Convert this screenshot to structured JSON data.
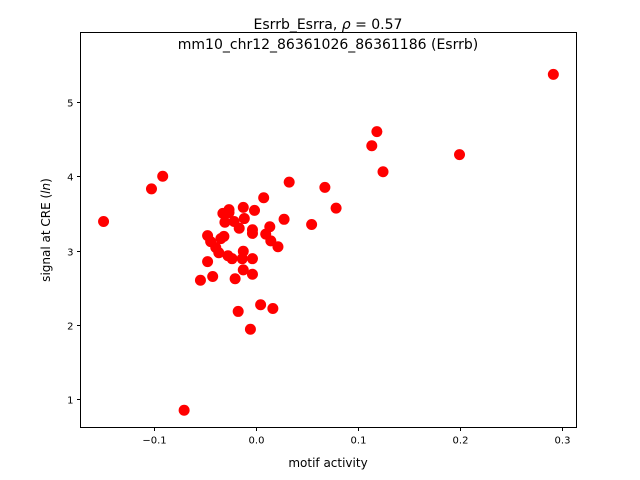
{
  "chart_data": {
    "type": "scatter",
    "title_line1_prefix": "Esrrb_Esrra, ",
    "title_rho_symbol": "ρ",
    "title_rho_value": " = 0.57",
    "title_line2": "mm10_chr12_86361026_86361186 (Esrrb)",
    "xlabel": "motif activity",
    "ylabel_prefix": "signal at CRE (",
    "ylabel_italic": "ln",
    "ylabel_suffix": ")",
    "xlim": [
      -0.1716,
      0.3147
    ],
    "ylim": [
      0.618,
      5.934
    ],
    "xticks": [
      -0.1,
      0.0,
      0.1,
      0.2,
      0.3
    ],
    "xtick_labels": [
      "−0.1",
      "0.0",
      "0.1",
      "0.2",
      "0.3"
    ],
    "yticks": [
      1,
      2,
      3,
      4,
      5
    ],
    "ytick_labels": [
      "1",
      "2",
      "3",
      "4",
      "5"
    ],
    "marker_color": "#ff0000",
    "grid": false,
    "points": [
      [
        0.033,
        3.92
      ],
      [
        0.068,
        3.85
      ],
      [
        0.079,
        3.57
      ],
      [
        0.008,
        3.71
      ],
      [
        -0.012,
        3.58
      ],
      [
        -0.001,
        3.54
      ],
      [
        -0.026,
        3.55
      ],
      [
        -0.032,
        3.5
      ],
      [
        -0.026,
        3.51
      ],
      [
        -0.011,
        3.43
      ],
      [
        -0.021,
        3.39
      ],
      [
        -0.03,
        3.38
      ],
      [
        0.028,
        3.42
      ],
      [
        0.055,
        3.35
      ],
      [
        0.014,
        3.32
      ],
      [
        -0.016,
        3.3
      ],
      [
        -0.003,
        3.28
      ],
      [
        -0.003,
        3.23
      ],
      [
        0.01,
        3.22
      ],
      [
        -0.047,
        3.2
      ],
      [
        -0.031,
        3.19
      ],
      [
        -0.034,
        3.16
      ],
      [
        -0.044,
        3.12
      ],
      [
        0.015,
        3.13
      ],
      [
        0.022,
        3.05
      ],
      [
        -0.039,
        3.04
      ],
      [
        -0.036,
        2.97
      ],
      [
        -0.012,
        2.99
      ],
      [
        -0.027,
        2.93
      ],
      [
        -0.023,
        2.89
      ],
      [
        -0.013,
        2.89
      ],
      [
        -0.003,
        2.89
      ],
      [
        -0.047,
        2.85
      ],
      [
        -0.012,
        2.74
      ],
      [
        -0.003,
        2.68
      ],
      [
        -0.054,
        2.6
      ],
      [
        -0.042,
        2.65
      ],
      [
        -0.02,
        2.62
      ],
      [
        0.005,
        2.27
      ],
      [
        0.017,
        2.22
      ],
      [
        -0.017,
        2.18
      ],
      [
        -0.005,
        1.94
      ],
      [
        -0.149,
        3.39
      ],
      [
        -0.102,
        3.83
      ],
      [
        -0.091,
        4.0
      ],
      [
        -0.07,
        0.85
      ],
      [
        0.119,
        4.6
      ],
      [
        0.114,
        4.41
      ],
      [
        0.125,
        4.06
      ],
      [
        0.2,
        4.29
      ],
      [
        0.292,
        5.37
      ]
    ]
  }
}
